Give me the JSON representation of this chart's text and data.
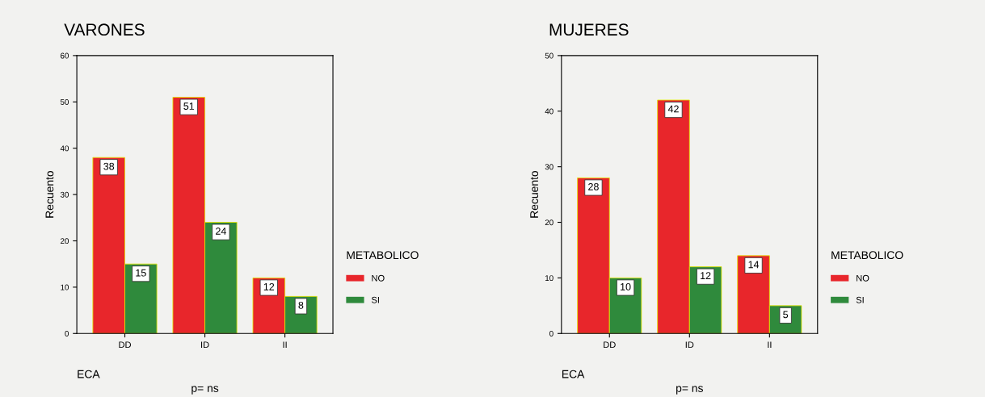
{
  "chart_data": [
    {
      "type": "bar",
      "title": "VARONES",
      "xlabel": "ECA",
      "ylabel": "Recuento",
      "legend_title": "METABOLICO",
      "annotations": [
        "p= ns"
      ],
      "categories": [
        "DD",
        "ID",
        "II"
      ],
      "series": [
        {
          "name": "NO",
          "color": "#e8262b",
          "values": [
            38,
            51,
            12
          ]
        },
        {
          "name": "SI",
          "color": "#2f8a3c",
          "values": [
            15,
            24,
            8
          ]
        }
      ],
      "ylim": [
        0,
        60
      ],
      "yticks": [
        0,
        10,
        20,
        30,
        40,
        50,
        60
      ],
      "grid": false,
      "legend": "right",
      "data_labels": true
    },
    {
      "type": "bar",
      "title": "MUJERES",
      "xlabel": "ECA",
      "ylabel": "Recuento",
      "legend_title": "METABOLICO",
      "annotations": [
        "p= ns"
      ],
      "categories": [
        "DD",
        "ID",
        "II"
      ],
      "series": [
        {
          "name": "NO",
          "color": "#e8262b",
          "values": [
            28,
            42,
            14
          ]
        },
        {
          "name": "SI",
          "color": "#2f8a3c",
          "values": [
            10,
            12,
            5
          ]
        }
      ],
      "ylim": [
        0,
        50
      ],
      "yticks": [
        0,
        10,
        20,
        30,
        40,
        50
      ],
      "grid": false,
      "legend": "right",
      "data_labels": true
    }
  ]
}
